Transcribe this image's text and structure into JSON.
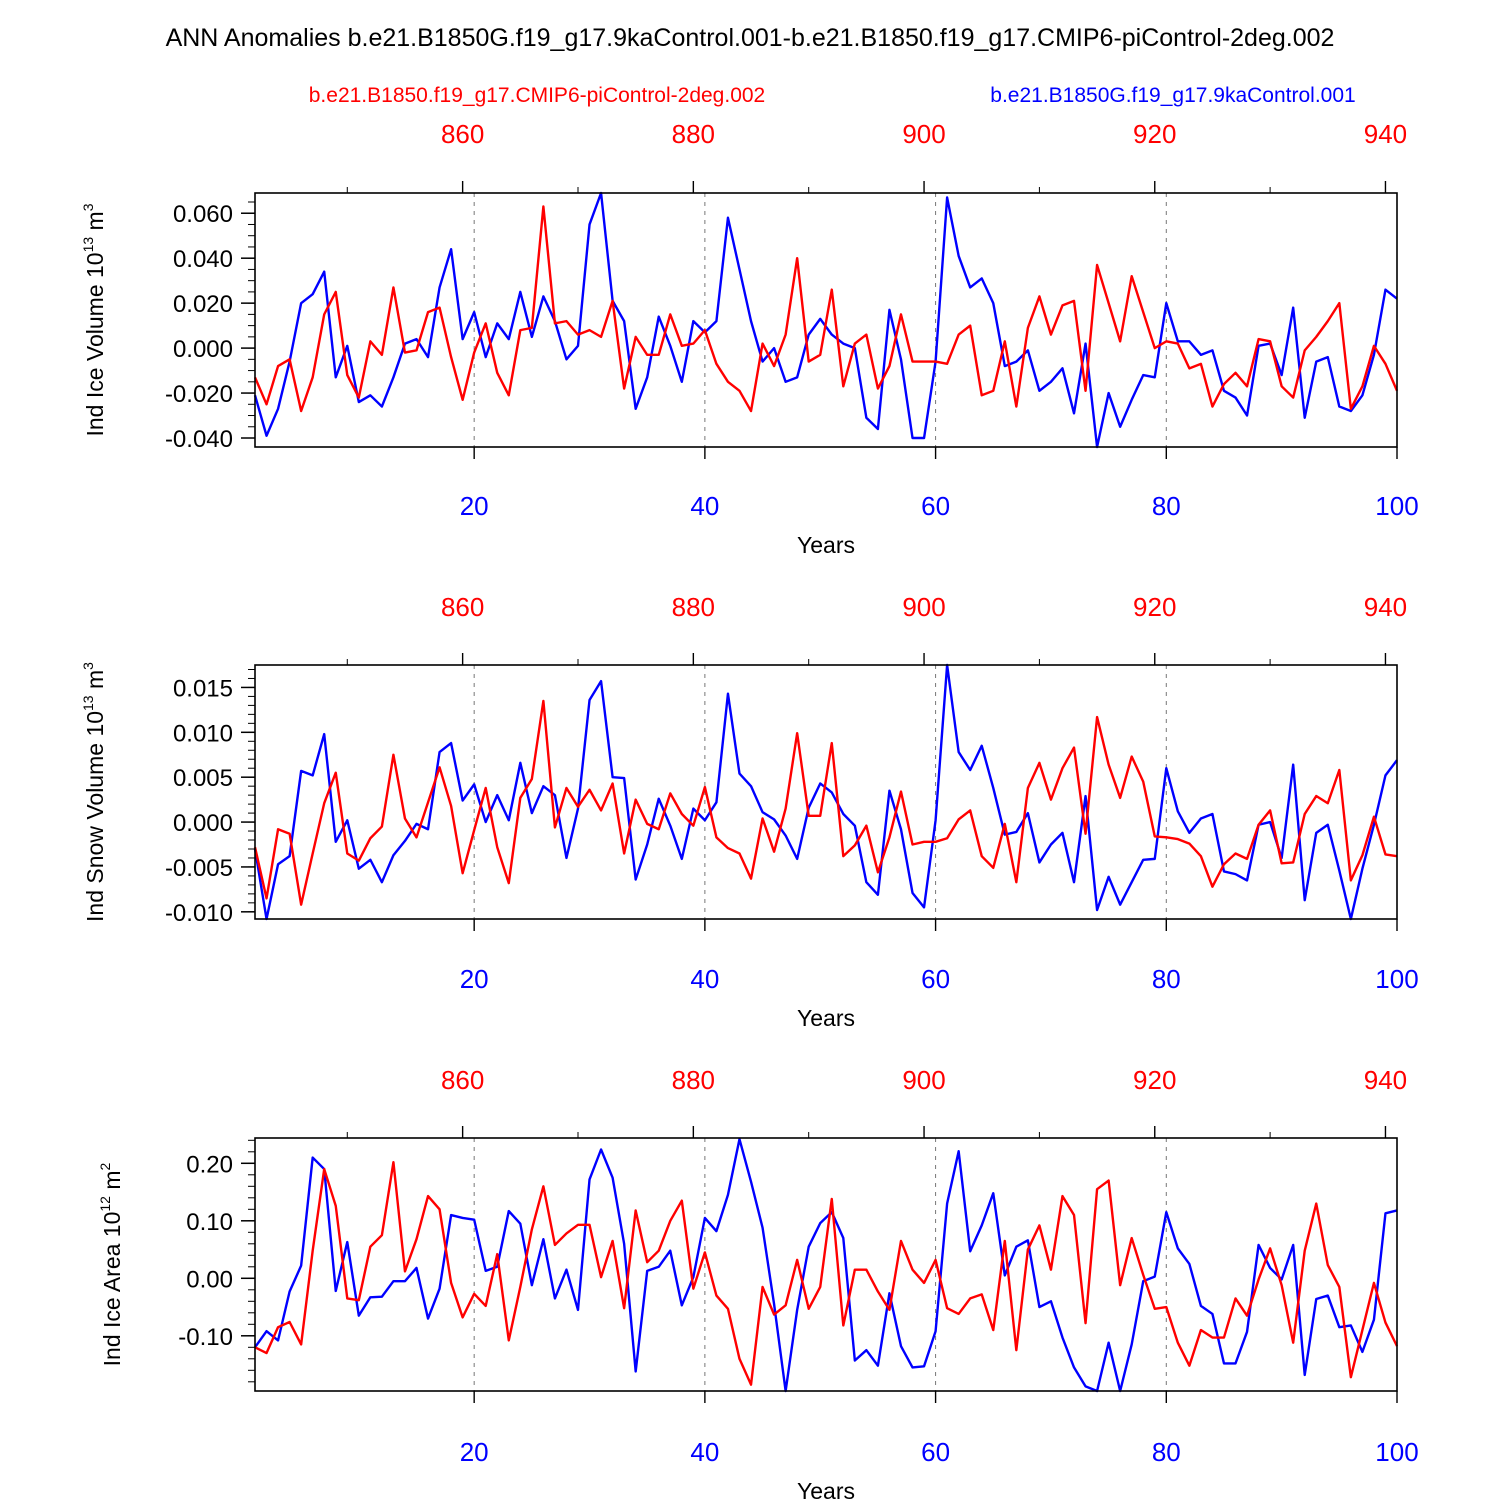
{
  "figure": {
    "title": "ANN Anomalies b.e21.B1850G.f19_g17.9kaControl.001-b.e21.B1850.f19_g17.CMIP6-piControl-2deg.002",
    "legend": {
      "red_label": "b.e21.B1850.f19_g17.CMIP6-piControl-2deg.002",
      "blue_label": "b.e21.B1850G.f19_g17.9kaControl.001"
    },
    "colors": {
      "red": "#ff0000",
      "blue": "#0000ff",
      "axis": "#000000",
      "grid": "#777777"
    }
  },
  "chart_data": [
    {
      "type": "line",
      "ylabel_main": "Ind Ice Volume 10",
      "ylabel_exp": "13",
      "ylabel_unit": " m",
      "ylabel_unit_exp": "3",
      "xlabel": "Years",
      "xlim": [
        1,
        100
      ],
      "ylim": [
        -0.044,
        0.069
      ],
      "xticks_bottom": [
        20,
        40,
        60,
        80,
        100
      ],
      "xticks_top_values": [
        860,
        880,
        900,
        920,
        940
      ],
      "xtop_offset": 841,
      "yticks": [
        -0.04,
        -0.02,
        0.0,
        0.02,
        0.04,
        0.06
      ],
      "ytick_labels": [
        "-0.040",
        "-0.020",
        "0.000",
        "0.020",
        "0.040",
        "0.060"
      ],
      "yminor_step": 0.005,
      "grid_vertical": [
        20,
        40,
        60,
        80
      ],
      "series": [
        {
          "name": "b.e21.B1850G.f19_g17.9kaControl.001",
          "color": "blue",
          "values": [
            -0.021,
            -0.039,
            -0.027,
            -0.006,
            0.02,
            0.024,
            0.034,
            -0.013,
            0.001,
            -0.024,
            -0.021,
            -0.026,
            -0.013,
            0.002,
            0.004,
            -0.004,
            0.027,
            0.044,
            0.004,
            0.016,
            -0.004,
            0.011,
            0.004,
            0.025,
            0.005,
            0.023,
            0.012,
            -0.005,
            0.001,
            0.055,
            0.069,
            0.021,
            0.012,
            -0.027,
            -0.013,
            0.014,
            0.001,
            -0.015,
            0.012,
            0.007,
            0.012,
            0.058,
            0.035,
            0.012,
            -0.006,
            0.0,
            -0.015,
            -0.013,
            0.006,
            0.013,
            0.006,
            0.002,
            0.0,
            -0.031,
            -0.036,
            0.017,
            -0.005,
            -0.04,
            -0.04,
            -0.006,
            0.067,
            0.041,
            0.027,
            0.031,
            0.02,
            -0.008,
            -0.006,
            -0.001,
            -0.019,
            -0.015,
            -0.009,
            -0.029,
            0.002,
            -0.044,
            -0.02,
            -0.035,
            -0.023,
            -0.012,
            -0.013,
            0.02,
            0.003,
            0.003,
            -0.003,
            -0.001,
            -0.019,
            -0.022,
            -0.03,
            0.001,
            0.002,
            -0.012,
            0.018,
            -0.031,
            -0.006,
            -0.004,
            -0.026,
            -0.028,
            -0.021,
            -0.003,
            0.026,
            0.022
          ]
        },
        {
          "name": "b.e21.B1850.f19_g17.CMIP6-piControl-2deg.002",
          "color": "red",
          "values": [
            -0.013,
            -0.025,
            -0.008,
            -0.005,
            -0.028,
            -0.013,
            0.015,
            0.025,
            -0.012,
            -0.022,
            0.003,
            -0.003,
            0.027,
            -0.002,
            -0.001,
            0.016,
            0.018,
            -0.004,
            -0.023,
            -0.002,
            0.011,
            -0.011,
            -0.021,
            0.008,
            0.009,
            0.063,
            0.011,
            0.012,
            0.006,
            0.008,
            0.005,
            0.021,
            -0.018,
            0.005,
            -0.003,
            -0.003,
            0.015,
            0.001,
            0.002,
            0.008,
            -0.007,
            -0.015,
            -0.019,
            -0.028,
            0.002,
            -0.008,
            0.006,
            0.04,
            -0.006,
            -0.003,
            0.026,
            -0.017,
            0.002,
            0.006,
            -0.018,
            -0.008,
            0.015,
            -0.006,
            -0.006,
            -0.006,
            -0.007,
            0.006,
            0.01,
            -0.021,
            -0.019,
            0.003,
            -0.026,
            0.009,
            0.023,
            0.006,
            0.019,
            0.021,
            -0.019,
            0.037,
            0.02,
            0.003,
            0.032,
            0.016,
            0.0,
            0.003,
            0.002,
            -0.009,
            -0.007,
            -0.026,
            -0.016,
            -0.011,
            -0.017,
            0.004,
            0.003,
            -0.017,
            -0.022,
            -0.001,
            0.005,
            0.012,
            0.02,
            -0.027,
            -0.017,
            0.001,
            -0.007,
            -0.019
          ]
        }
      ]
    },
    {
      "type": "line",
      "ylabel_main": "Ind Snow Volume 10",
      "ylabel_exp": "13",
      "ylabel_unit": " m",
      "ylabel_unit_exp": "3",
      "xlabel": "Years",
      "xlim": [
        1,
        100
      ],
      "ylim": [
        -0.0108,
        0.0175
      ],
      "xticks_bottom": [
        20,
        40,
        60,
        80,
        100
      ],
      "xticks_top_values": [
        860,
        880,
        900,
        920,
        940
      ],
      "xtop_offset": 841,
      "yticks": [
        -0.01,
        -0.005,
        0.0,
        0.005,
        0.01,
        0.015
      ],
      "ytick_labels": [
        "-0.010",
        "-0.005",
        "0.000",
        "0.005",
        "0.010",
        "0.015"
      ],
      "yminor_step": 0.001,
      "grid_vertical": [
        20,
        40,
        60,
        80
      ],
      "series": [
        {
          "name": "b.e21.B1850G.f19_g17.9kaControl.001",
          "color": "blue",
          "values": [
            -0.003,
            -0.0108,
            -0.0047,
            -0.0038,
            0.0057,
            0.0052,
            0.0098,
            -0.0022,
            0.0002,
            -0.0052,
            -0.0042,
            -0.0067,
            -0.0037,
            -0.0021,
            -0.0002,
            -0.0008,
            0.0078,
            0.0088,
            0.0024,
            0.0042,
            0.0,
            0.003,
            0.0002,
            0.0066,
            0.001,
            0.004,
            0.003,
            -0.004,
            0.0015,
            0.0136,
            0.0157,
            0.005,
            0.0049,
            -0.0064,
            -0.0025,
            0.0026,
            -0.0004,
            -0.0041,
            0.0015,
            0.0002,
            0.0022,
            0.0143,
            0.0054,
            0.004,
            0.0011,
            0.0003,
            -0.0015,
            -0.0041,
            0.0016,
            0.0043,
            0.0033,
            0.0009,
            -0.0004,
            -0.0067,
            -0.0081,
            0.0035,
            -0.0008,
            -0.0079,
            -0.0095,
            0.0002,
            0.0175,
            0.0078,
            0.0058,
            0.0085,
            0.0038,
            -0.0014,
            -0.0011,
            0.001,
            -0.0045,
            -0.0025,
            -0.0012,
            -0.0067,
            0.0029,
            -0.0098,
            -0.0061,
            -0.0092,
            -0.0067,
            -0.0042,
            -0.0041,
            0.006,
            0.0012,
            -0.0012,
            0.0004,
            0.0009,
            -0.0055,
            -0.0058,
            -0.0065,
            -0.0003,
            0.0,
            -0.004,
            0.0064,
            -0.0087,
            -0.0012,
            -0.0003,
            -0.0054,
            -0.0108,
            -0.0052,
            -0.0003,
            0.0052,
            0.0069
          ]
        },
        {
          "name": "b.e21.B1850.f19_g17.CMIP6-piControl-2deg.002",
          "color": "red",
          "values": [
            -0.0028,
            -0.0085,
            -0.0008,
            -0.0013,
            -0.0092,
            -0.0035,
            0.0021,
            0.0055,
            -0.0035,
            -0.0043,
            -0.0018,
            -0.0005,
            0.0075,
            0.0004,
            -0.0017,
            0.0022,
            0.0061,
            0.0018,
            -0.0057,
            -0.0009,
            0.0038,
            -0.0028,
            -0.0068,
            0.0027,
            0.0048,
            0.0135,
            -0.0006,
            0.0038,
            0.0017,
            0.0036,
            0.0013,
            0.0043,
            -0.0035,
            0.0025,
            -0.0002,
            -0.0008,
            0.0032,
            0.0009,
            -0.0004,
            0.0039,
            -0.0017,
            -0.0029,
            -0.0035,
            -0.0063,
            0.0004,
            -0.0033,
            0.0015,
            0.0099,
            0.0007,
            0.0007,
            0.0088,
            -0.0038,
            -0.0026,
            -0.0004,
            -0.0056,
            -0.0017,
            0.0034,
            -0.0025,
            -0.0022,
            -0.0022,
            -0.0018,
            0.0003,
            0.0013,
            -0.0038,
            -0.0051,
            -0.0002,
            -0.0067,
            0.0038,
            0.0066,
            0.0025,
            0.006,
            0.0083,
            -0.0013,
            0.0117,
            0.0064,
            0.0027,
            0.0073,
            0.0045,
            -0.0016,
            -0.0017,
            -0.0019,
            -0.0024,
            -0.0038,
            -0.0072,
            -0.0047,
            -0.0035,
            -0.0041,
            -0.0003,
            0.0013,
            -0.0046,
            -0.0045,
            0.0009,
            0.0029,
            0.0021,
            0.0058,
            -0.0065,
            -0.0037,
            0.0006,
            -0.0036,
            -0.0038
          ]
        }
      ]
    },
    {
      "type": "line",
      "ylabel_main": "Ind Ice Area 10",
      "ylabel_exp": "12",
      "ylabel_unit": " m",
      "ylabel_unit_exp": "2",
      "xlabel": "Years",
      "xlim": [
        1,
        100
      ],
      "ylim": [
        -0.196,
        0.244
      ],
      "xticks_bottom": [
        20,
        40,
        60,
        80,
        100
      ],
      "xticks_top_values": [
        860,
        880,
        900,
        920,
        940
      ],
      "xtop_offset": 841,
      "yticks": [
        -0.1,
        0.0,
        0.1,
        0.2
      ],
      "ytick_labels": [
        "-0.10",
        "0.00",
        "0.10",
        "0.20"
      ],
      "yminor_step": 0.02,
      "grid_vertical": [
        20,
        40,
        60,
        80
      ],
      "series": [
        {
          "name": "b.e21.B1850G.f19_g17.9kaControl.001",
          "color": "blue",
          "values": [
            -0.12,
            -0.092,
            -0.108,
            -0.023,
            0.022,
            0.21,
            0.19,
            -0.022,
            0.063,
            -0.065,
            -0.033,
            -0.032,
            -0.005,
            -0.005,
            0.018,
            -0.07,
            -0.018,
            0.11,
            0.105,
            0.102,
            0.013,
            0.02,
            0.117,
            0.095,
            -0.012,
            0.068,
            -0.035,
            0.015,
            -0.055,
            0.172,
            0.224,
            0.175,
            0.06,
            -0.162,
            0.013,
            0.02,
            0.048,
            -0.047,
            0.002,
            0.105,
            0.082,
            0.145,
            0.242,
            0.168,
            0.088,
            -0.045,
            -0.196,
            -0.055,
            0.055,
            0.096,
            0.115,
            0.07,
            -0.143,
            -0.125,
            -0.152,
            -0.026,
            -0.118,
            -0.155,
            -0.153,
            -0.092,
            0.13,
            0.221,
            0.047,
            0.092,
            0.148,
            0.005,
            0.055,
            0.066,
            -0.05,
            -0.04,
            -0.103,
            -0.155,
            -0.188,
            -0.196,
            -0.112,
            -0.196,
            -0.115,
            -0.005,
            0.003,
            0.115,
            0.052,
            0.025,
            -0.048,
            -0.062,
            -0.148,
            -0.148,
            -0.093,
            0.058,
            0.018,
            -0.002,
            0.058,
            -0.168,
            -0.036,
            -0.03,
            -0.085,
            -0.082,
            -0.128,
            -0.072,
            0.113,
            0.118
          ]
        },
        {
          "name": "b.e21.B1850.f19_g17.CMIP6-piControl-2deg.002",
          "color": "red",
          "values": [
            -0.12,
            -0.13,
            -0.085,
            -0.076,
            -0.115,
            0.048,
            0.19,
            0.126,
            -0.035,
            -0.038,
            0.055,
            0.075,
            0.202,
            0.012,
            0.068,
            0.143,
            0.12,
            -0.008,
            -0.068,
            -0.027,
            -0.048,
            0.042,
            -0.108,
            -0.015,
            0.085,
            0.16,
            0.058,
            0.078,
            0.093,
            0.093,
            0.002,
            0.065,
            -0.052,
            0.118,
            0.028,
            0.048,
            0.1,
            0.135,
            -0.018,
            0.045,
            -0.03,
            -0.053,
            -0.14,
            -0.185,
            -0.015,
            -0.063,
            -0.047,
            0.032,
            -0.053,
            -0.015,
            0.138,
            -0.082,
            0.015,
            0.015,
            -0.023,
            -0.055,
            0.065,
            0.015,
            -0.008,
            0.032,
            -0.052,
            -0.062,
            -0.035,
            -0.028,
            -0.09,
            0.065,
            -0.125,
            0.05,
            0.092,
            0.015,
            0.143,
            0.11,
            -0.078,
            0.155,
            0.17,
            -0.012,
            0.07,
            0.006,
            -0.053,
            -0.05,
            -0.112,
            -0.152,
            -0.09,
            -0.103,
            -0.103,
            -0.035,
            -0.065,
            -0.002,
            0.052,
            -0.012,
            -0.112,
            0.048,
            0.13,
            0.023,
            -0.015,
            -0.172,
            -0.09,
            -0.008,
            -0.077,
            -0.118
          ]
        }
      ]
    }
  ]
}
